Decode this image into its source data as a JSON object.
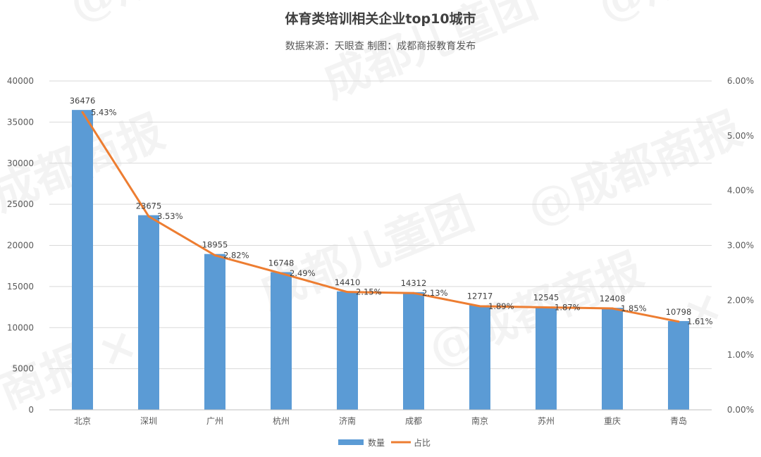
{
  "chart_data": {
    "type": "bar",
    "title": "体育类培训相关企业top10城市",
    "subtitle": "数据来源：天眼查  制图：成都商报教育发布",
    "categories": [
      "北京",
      "深圳",
      "广州",
      "杭州",
      "济南",
      "成都",
      "南京",
      "苏州",
      "重庆",
      "青岛"
    ],
    "series": [
      {
        "name": "数量",
        "type": "bar",
        "axis": "left",
        "color": "#5b9bd5",
        "values": [
          36476,
          23675,
          18955,
          16748,
          14410,
          14312,
          12717,
          12545,
          12408,
          10798
        ]
      },
      {
        "name": "占比",
        "type": "line",
        "axis": "right",
        "color": "#ed7d31",
        "values": [
          5.43,
          3.53,
          2.82,
          2.49,
          2.15,
          2.13,
          1.89,
          1.87,
          1.85,
          1.61
        ],
        "labels": [
          "5.43%",
          "3.53%",
          "2.82%",
          "2.49%",
          "2.15%",
          "2.13%",
          "1.89%",
          "1.87%",
          "1.85%",
          "1.61%"
        ]
      }
    ],
    "ylim": [
      0,
      40000
    ],
    "yticks": [
      "0",
      "5000",
      "10000",
      "15000",
      "20000",
      "25000",
      "30000",
      "35000",
      "40000"
    ],
    "y2lim": [
      0,
      6
    ],
    "y2ticks": [
      "0.00%",
      "1.00%",
      "2.00%",
      "3.00%",
      "4.00%",
      "5.00%",
      "6.00%"
    ],
    "legend_position": "bottom",
    "grid": true
  }
}
